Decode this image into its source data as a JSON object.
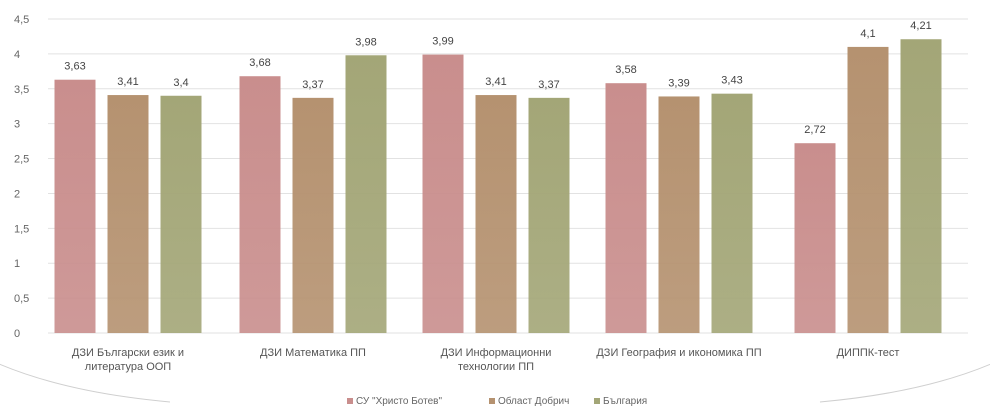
{
  "chart_data": {
    "type": "bar",
    "title": "",
    "xlabel": "",
    "ylabel": "",
    "ylim": [
      0,
      4.5
    ],
    "yticks": [
      "0",
      "0,5",
      "1",
      "1,5",
      "2",
      "2,5",
      "3",
      "3,5",
      "4",
      "4,5"
    ],
    "categories": [
      [
        "ДЗИ Български език и",
        "литература ООП"
      ],
      [
        "ДЗИ Математика ПП"
      ],
      [
        "ДЗИ Информационни",
        "технологии ПП"
      ],
      [
        "ДЗИ География и икономика ПП"
      ],
      [
        "ДИППК-тест"
      ]
    ],
    "series": [
      {
        "name": "СУ \"Христо Ботев\"",
        "color": "#c98e8d",
        "values": [
          3.63,
          3.68,
          3.99,
          3.58,
          2.72
        ],
        "labels": [
          "3,63",
          "3,68",
          "3,99",
          "3,58",
          "2,72"
        ]
      },
      {
        "name": "Област Добрич",
        "color": "#b59270",
        "values": [
          3.41,
          3.37,
          3.41,
          3.39,
          4.1
        ],
        "labels": [
          "3,41",
          "3,37",
          "3,41",
          "3,39",
          "4,1"
        ]
      },
      {
        "name": "България",
        "color": "#a3a677",
        "values": [
          3.4,
          3.98,
          3.37,
          3.43,
          4.21
        ],
        "labels": [
          "3,4",
          "3,98",
          "3,37",
          "3,43",
          "4,21"
        ]
      }
    ],
    "grid": true,
    "legend_position": "bottom"
  }
}
